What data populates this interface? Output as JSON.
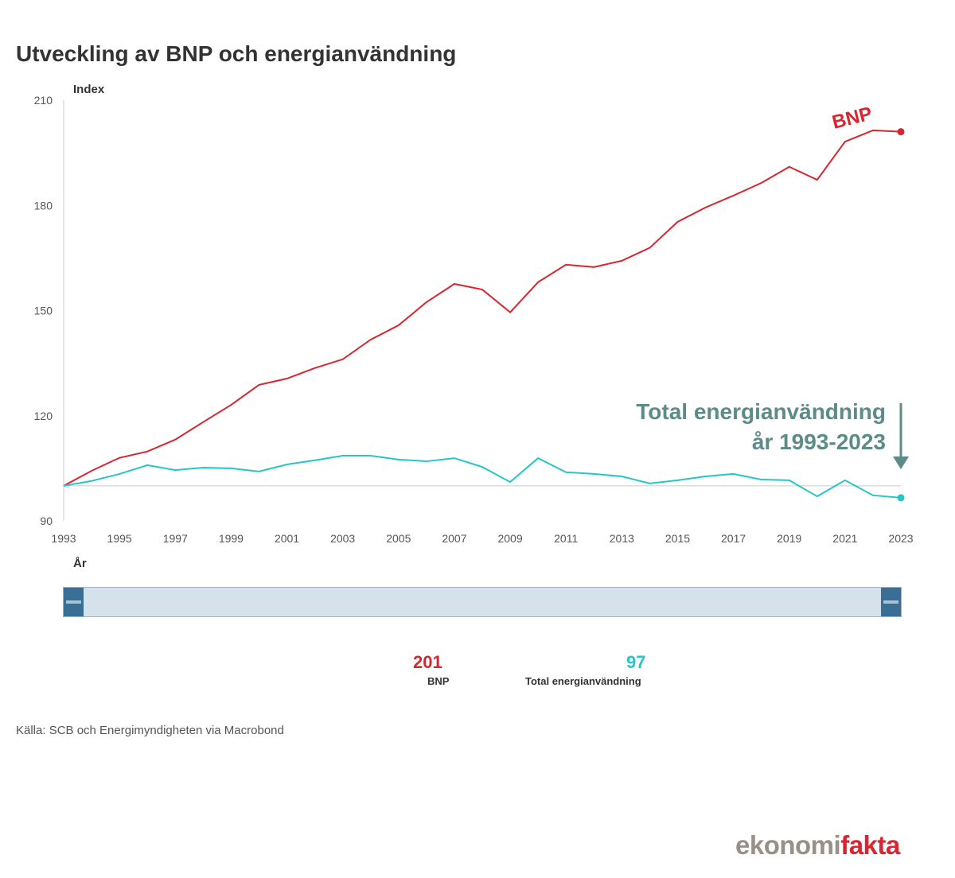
{
  "title": "Utveckling av BNP och energianvändning",
  "chart_data": {
    "type": "line",
    "title": "Utveckling av BNP och energianvändning",
    "ylabel": "Index",
    "xlabel": "År",
    "ylim": [
      90,
      210
    ],
    "yticks": [
      90,
      120,
      150,
      180,
      210
    ],
    "xlim": [
      1993,
      2023
    ],
    "xticks": [
      1993,
      1995,
      1997,
      1999,
      2001,
      2003,
      2005,
      2007,
      2009,
      2011,
      2013,
      2015,
      2017,
      2019,
      2021,
      2023
    ],
    "x": [
      1993,
      1994,
      1995,
      1996,
      1997,
      1998,
      1999,
      2000,
      2001,
      2002,
      2003,
      2004,
      2005,
      2006,
      2007,
      2008,
      2009,
      2010,
      2011,
      2012,
      2013,
      2014,
      2015,
      2016,
      2017,
      2018,
      2019,
      2020,
      2021,
      2022,
      2023
    ],
    "reference_line": 100,
    "grid": false,
    "series": [
      {
        "name": "BNP",
        "color": "#d7262f",
        "values": [
          100,
          104.3,
          108,
          109.8,
          113.2,
          118.2,
          123.1,
          128.8,
          130.6,
          133.6,
          136.1,
          141.7,
          145.8,
          152.4,
          157.6,
          156,
          149.5,
          158.1,
          163.1,
          162.4,
          164.2,
          167.9,
          175.3,
          179.4,
          182.8,
          186.4,
          191,
          187.3,
          198.2,
          201.4,
          201
        ]
      },
      {
        "name": "Total energianvändning",
        "color": "#26c6c6",
        "values": [
          100,
          101.4,
          103.4,
          105.9,
          104.5,
          105.2,
          105,
          104.1,
          106.1,
          107.3,
          108.6,
          108.6,
          107.5,
          107,
          107.9,
          105.4,
          101.1,
          107.9,
          103.9,
          103.4,
          102.7,
          100.7,
          101.6,
          102.7,
          103.4,
          101.8,
          101.6,
          97,
          101.6,
          97.3,
          96.6
        ]
      }
    ],
    "annotations": {
      "bnp": "BNP",
      "energy_line1": "Total energianvändning",
      "energy_line2": "år 1993-2023",
      "annotation_color": "#5d8b88"
    }
  },
  "slider": {
    "range": [
      "1993",
      "2023"
    ]
  },
  "readout": [
    {
      "value": "201",
      "label": "BNP",
      "color": "#d7262f"
    },
    {
      "value": "97",
      "label": "Total energianvändning",
      "color": "#26c6c6"
    }
  ],
  "source": "Källa: SCB och Energimyndigheten via Macrobond",
  "logo": {
    "part1": "ekonomi",
    "part2": "fakta"
  }
}
